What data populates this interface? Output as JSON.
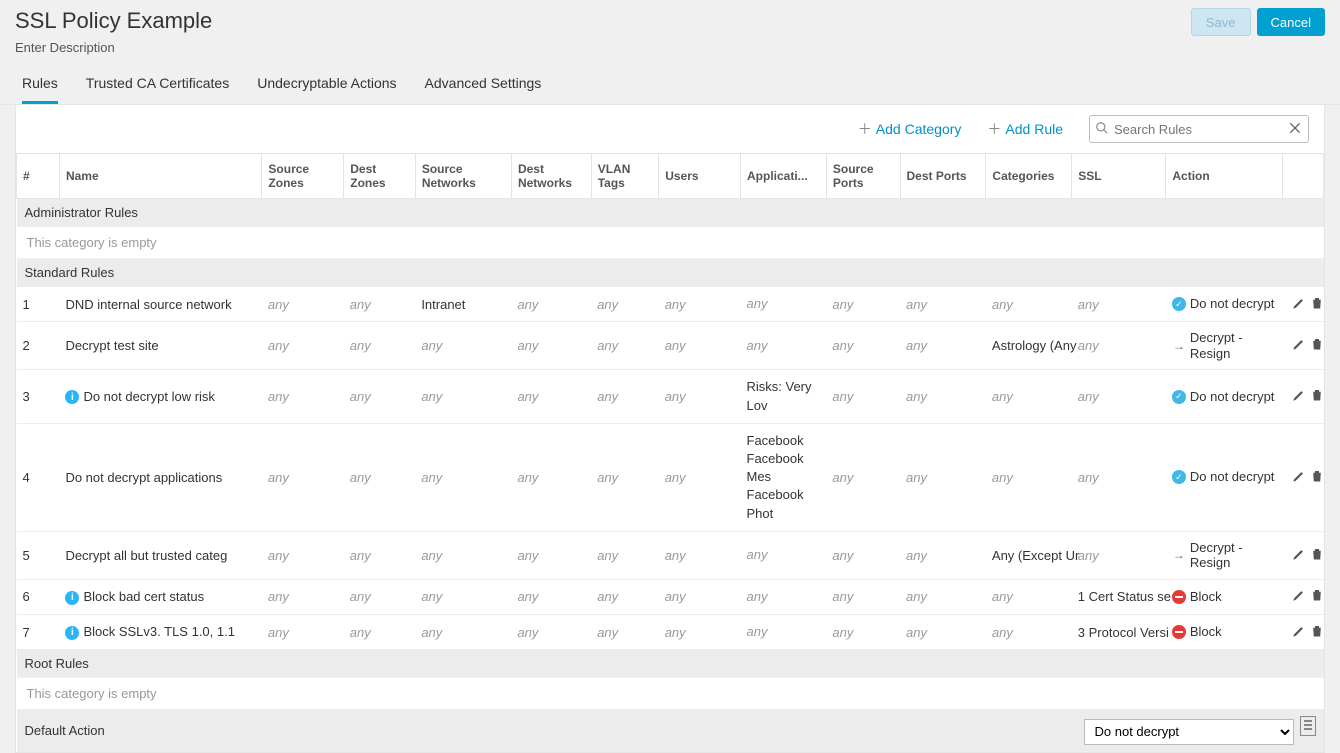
{
  "header": {
    "title": "SSL Policy Example",
    "description": "Enter Description",
    "save_label": "Save",
    "cancel_label": "Cancel"
  },
  "tabs": [
    {
      "id": "rules",
      "label": "Rules",
      "active": true
    },
    {
      "id": "trusted",
      "label": "Trusted CA Certificates",
      "active": false
    },
    {
      "id": "undecrypt",
      "label": "Undecryptable Actions",
      "active": false
    },
    {
      "id": "advanced",
      "label": "Advanced Settings",
      "active": false
    }
  ],
  "toolbar": {
    "add_category_label": "Add Category",
    "add_rule_label": "Add Rule",
    "search_placeholder": "Search Rules"
  },
  "columns": {
    "num": "#",
    "name": "Name",
    "src_zones": "Source Zones",
    "dest_zones": "Dest Zones",
    "src_nets": "Source Networks",
    "dest_nets": "Dest Networks",
    "vlan": "VLAN Tags",
    "users": "Users",
    "apps": "Applicati...",
    "src_ports": "Source Ports",
    "dest_ports": "Dest Ports",
    "categories": "Categories",
    "ssl": "SSL",
    "action": "Action"
  },
  "strings": {
    "any": "any",
    "empty_category": "This category is empty",
    "default_action_label": "Default Action"
  },
  "categories": {
    "admin": "Administrator Rules",
    "standard": "Standard Rules",
    "root": "Root Rules"
  },
  "rules": [
    {
      "num": "1",
      "info": false,
      "name": "DND internal source network",
      "src_zones": "any",
      "dest_zones": "any",
      "src_nets": "Intranet",
      "dest_nets": "any",
      "vlan": "any",
      "users": "any",
      "apps": "any",
      "src_ports": "any",
      "dest_ports": "any",
      "categories": "any",
      "ssl": "any",
      "action_type": "dnd",
      "action_label": "Do not decrypt"
    },
    {
      "num": "2",
      "info": false,
      "name": "Decrypt test site",
      "src_zones": "any",
      "dest_zones": "any",
      "src_nets": "any",
      "dest_nets": "any",
      "vlan": "any",
      "users": "any",
      "apps": "any",
      "src_ports": "any",
      "dest_ports": "any",
      "categories": "Astrology (Any",
      "ssl": "any",
      "action_type": "resign",
      "action_label": "Decrypt - Resign"
    },
    {
      "num": "3",
      "info": true,
      "name": "Do not decrypt low risk",
      "src_zones": "any",
      "dest_zones": "any",
      "src_nets": "any",
      "dest_nets": "any",
      "vlan": "any",
      "users": "any",
      "apps": "Risks: Very Lov",
      "src_ports": "any",
      "dest_ports": "any",
      "categories": "any",
      "ssl": "any",
      "action_type": "dnd",
      "action_label": "Do not decrypt"
    },
    {
      "num": "4",
      "info": false,
      "name": "Do not decrypt applications",
      "src_zones": "any",
      "dest_zones": "any",
      "src_nets": "any",
      "dest_nets": "any",
      "vlan": "any",
      "users": "any",
      "apps": "Facebook\nFacebook Mes\nFacebook Phot",
      "src_ports": "any",
      "dest_ports": "any",
      "categories": "any",
      "ssl": "any",
      "action_type": "dnd",
      "action_label": "Do not decrypt"
    },
    {
      "num": "5",
      "info": false,
      "name": "Decrypt all but trusted categ",
      "src_zones": "any",
      "dest_zones": "any",
      "src_nets": "any",
      "dest_nets": "any",
      "vlan": "any",
      "users": "any",
      "apps": "any",
      "src_ports": "any",
      "dest_ports": "any",
      "categories": "Any (Except Ur",
      "ssl": "any",
      "action_type": "resign",
      "action_label": "Decrypt - Resign"
    },
    {
      "num": "6",
      "info": true,
      "name": "Block bad cert status",
      "src_zones": "any",
      "dest_zones": "any",
      "src_nets": "any",
      "dest_nets": "any",
      "vlan": "any",
      "users": "any",
      "apps": "any",
      "src_ports": "any",
      "dest_ports": "any",
      "categories": "any",
      "ssl": "1 Cert Status se",
      "action_type": "block",
      "action_label": "Block"
    },
    {
      "num": "7",
      "info": true,
      "name": "Block SSLv3. TLS 1.0, 1.1",
      "src_zones": "any",
      "dest_zones": "any",
      "src_nets": "any",
      "dest_nets": "any",
      "vlan": "any",
      "users": "any",
      "apps": "any",
      "src_ports": "any",
      "dest_ports": "any",
      "categories": "any",
      "ssl": "3 Protocol Versi",
      "action_type": "block",
      "action_label": "Block"
    }
  ],
  "default_action": {
    "selected": "Do not decrypt"
  },
  "colors": {
    "accent": "#00a0d1",
    "info": "#29b6f6",
    "block": "#e53935",
    "border": "#e5e5e5",
    "muted": "#999999",
    "page_bg": "#f0f0f0"
  }
}
